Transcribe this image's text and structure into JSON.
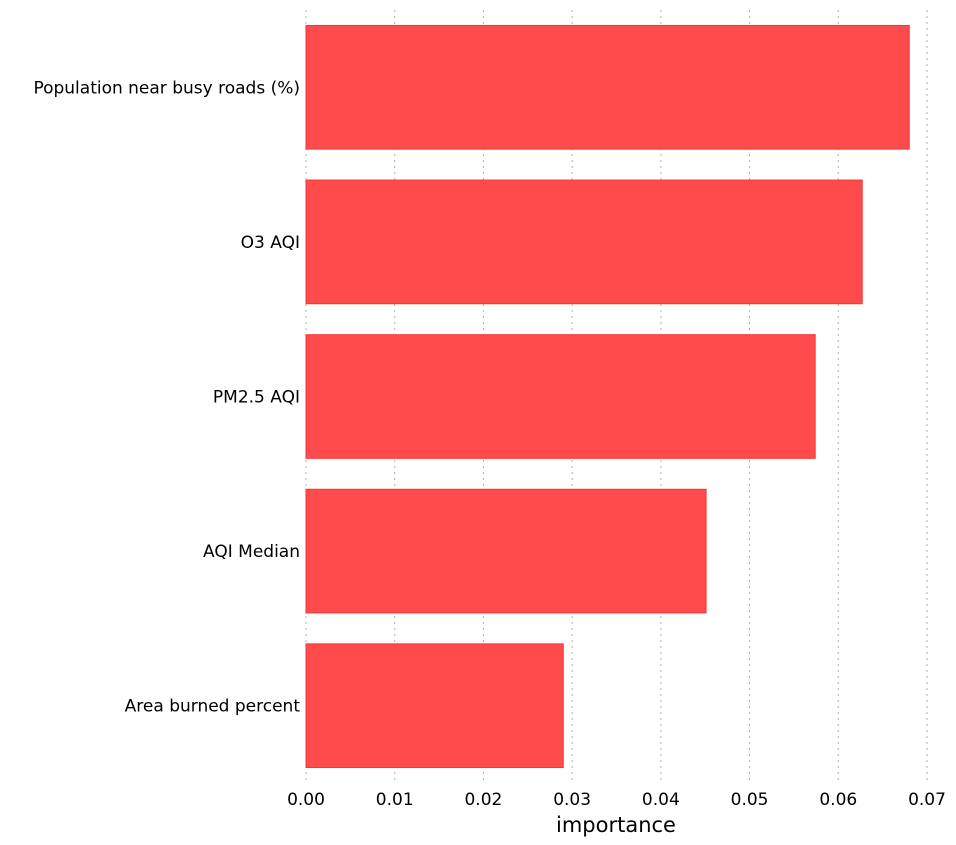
{
  "chart_data": {
    "type": "bar",
    "orientation": "horizontal",
    "categories": [
      "Population near busy roads (%)",
      "O3 AQI",
      "PM2.5 AQI",
      "AQI Median",
      "Area burned percent"
    ],
    "values": [
      0.068,
      0.0627,
      0.0574,
      0.0451,
      0.029
    ],
    "xlabel": "importance",
    "ylabel": "",
    "xlim": [
      0,
      0.07
    ],
    "xticks": [
      "0.00",
      "0.01",
      "0.02",
      "0.03",
      "0.04",
      "0.05",
      "0.06",
      "0.07"
    ],
    "grid": "vertical dotted",
    "bar_color": "#ff4b4b"
  }
}
